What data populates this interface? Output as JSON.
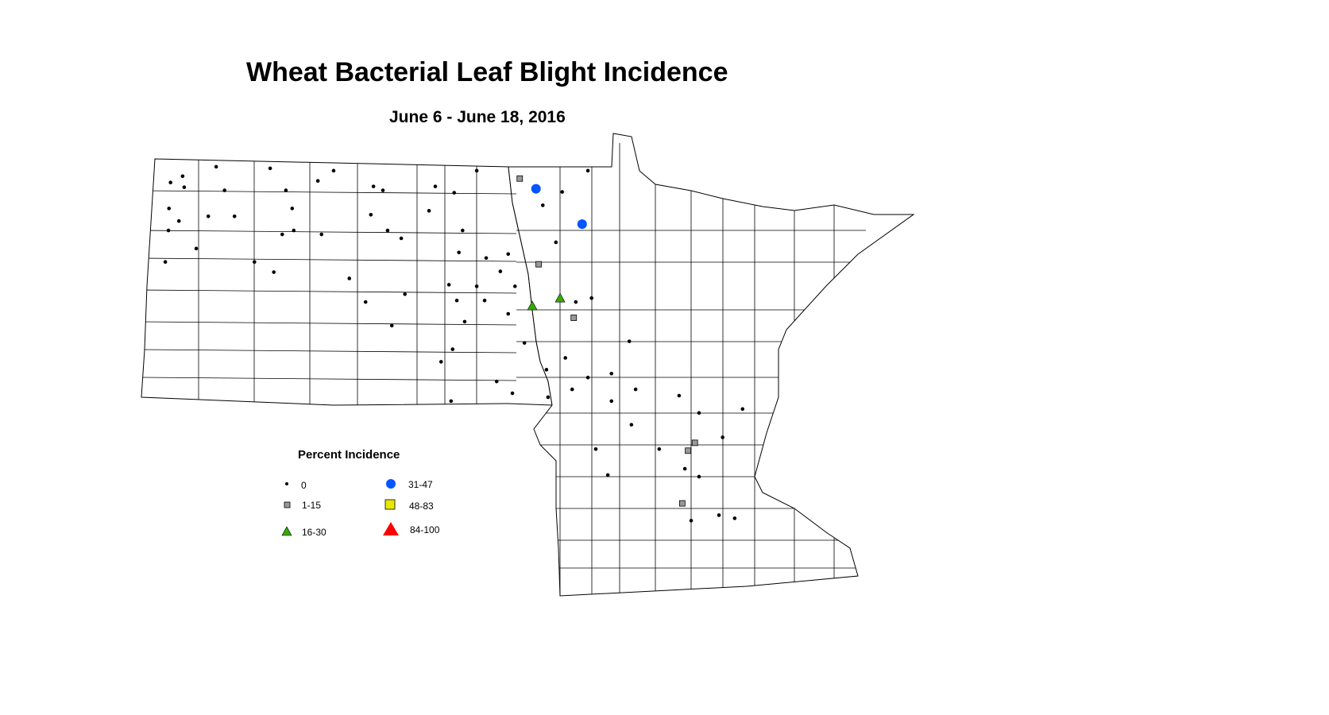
{
  "title": "Wheat Bacterial Leaf Blight Incidence",
  "subtitle": "June 6 - June 18, 2016",
  "legend": {
    "title": "Percent Incidence",
    "classes": [
      {
        "label": "0",
        "symbol": "dot",
        "color": "#000000"
      },
      {
        "label": "1-15",
        "symbol": "square",
        "color": "#999999"
      },
      {
        "label": "16-30",
        "symbol": "triangle",
        "color": "#33aa00"
      },
      {
        "label": "31-47",
        "symbol": "circle",
        "color": "#0055ff"
      },
      {
        "label": "48-83",
        "symbol": "square",
        "color": "#e8e800"
      },
      {
        "label": "84-100",
        "symbol": "triangle",
        "color": "#ff0000"
      }
    ]
  },
  "regions": [
    "North Dakota",
    "Minnesota"
  ],
  "observations": {
    "0": [
      [
        -103.37,
        48.78
      ],
      [
        -103.6,
        48.7
      ],
      [
        -103.34,
        48.64
      ],
      [
        -103.63,
        48.37
      ],
      [
        -103.44,
        48.21
      ],
      [
        -103.64,
        48.09
      ],
      [
        -103.11,
        47.86
      ],
      [
        -103.7,
        47.69
      ],
      [
        -102.73,
        48.9
      ],
      [
        -102.57,
        48.6
      ],
      [
        -102.88,
        48.27
      ],
      [
        -102.38,
        48.27
      ],
      [
        -101.7,
        48.88
      ],
      [
        -101.4,
        48.6
      ],
      [
        -101.28,
        48.37
      ],
      [
        -101.47,
        48.04
      ],
      [
        -101.25,
        48.09
      ],
      [
        -100.72,
        48.04
      ],
      [
        -100.49,
        48.85
      ],
      [
        -100.79,
        48.72
      ],
      [
        -99.73,
        48.65
      ],
      [
        -99.55,
        48.6
      ],
      [
        -99.78,
        48.29
      ],
      [
        -99.46,
        48.09
      ],
      [
        -99.2,
        47.99
      ],
      [
        -98.67,
        48.34
      ],
      [
        -98.55,
        48.65
      ],
      [
        -98.19,
        48.57
      ],
      [
        -97.76,
        48.85
      ],
      [
        -98.03,
        48.09
      ],
      [
        -98.1,
        47.81
      ],
      [
        -97.58,
        47.74
      ],
      [
        -97.16,
        47.79
      ],
      [
        -97.31,
        47.57
      ],
      [
        -98.29,
        47.4
      ],
      [
        -97.76,
        47.38
      ],
      [
        -97.03,
        47.38
      ],
      [
        -98.14,
        47.2
      ],
      [
        -97.61,
        47.2
      ],
      [
        -97.16,
        47.03
      ],
      [
        -97.99,
        46.93
      ],
      [
        -98.22,
        46.58
      ],
      [
        -96.85,
        46.66
      ],
      [
        -97.38,
        46.17
      ],
      [
        -98.44,
        46.42
      ],
      [
        -98.25,
        45.92
      ],
      [
        -97.08,
        46.02
      ],
      [
        -99.13,
        47.28
      ],
      [
        -99.88,
        47.18
      ],
      [
        -99.38,
        46.88
      ],
      [
        -100.19,
        47.48
      ],
      [
        -102.0,
        47.69
      ],
      [
        -101.63,
        47.56
      ],
      [
        -95.64,
        48.85
      ],
      [
        -96.13,
        48.58
      ],
      [
        -96.5,
        48.41
      ],
      [
        -96.25,
        47.94
      ],
      [
        -95.57,
        47.23
      ],
      [
        -95.87,
        47.18
      ],
      [
        -96.07,
        46.47
      ],
      [
        -95.64,
        46.22
      ],
      [
        -95.19,
        46.27
      ],
      [
        -95.94,
        46.07
      ],
      [
        -95.19,
        45.92
      ],
      [
        -94.73,
        46.07
      ],
      [
        -94.81,
        45.62
      ],
      [
        -95.49,
        45.31
      ],
      [
        -95.26,
        44.98
      ],
      [
        -93.9,
        45.99
      ],
      [
        -93.52,
        45.77
      ],
      [
        -93.07,
        45.46
      ],
      [
        -92.69,
        45.82
      ],
      [
        -93.79,
        45.06
      ],
      [
        -93.52,
        44.96
      ],
      [
        -93.67,
        44.4
      ],
      [
        -93.14,
        44.47
      ],
      [
        -92.84,
        44.43
      ],
      [
        -94.28,
        45.31
      ],
      [
        -94.85,
        46.68
      ],
      [
        -96.43,
        46.32
      ],
      [
        -96.4,
        45.97
      ]
    ],
    "1-15": [
      [
        -96.94,
        48.75
      ],
      [
        -96.58,
        47.66
      ],
      [
        -95.91,
        46.98
      ],
      [
        -93.6,
        45.39
      ],
      [
        -93.73,
        45.29
      ],
      [
        -93.84,
        44.62
      ]
    ],
    "16-30": [
      [
        -96.7,
        47.13
      ],
      [
        -96.17,
        47.23
      ]
    ],
    "31-47": [
      [
        -96.63,
        48.62
      ],
      [
        -95.75,
        48.17
      ]
    ],
    "48-83": [],
    "84-100": []
  }
}
